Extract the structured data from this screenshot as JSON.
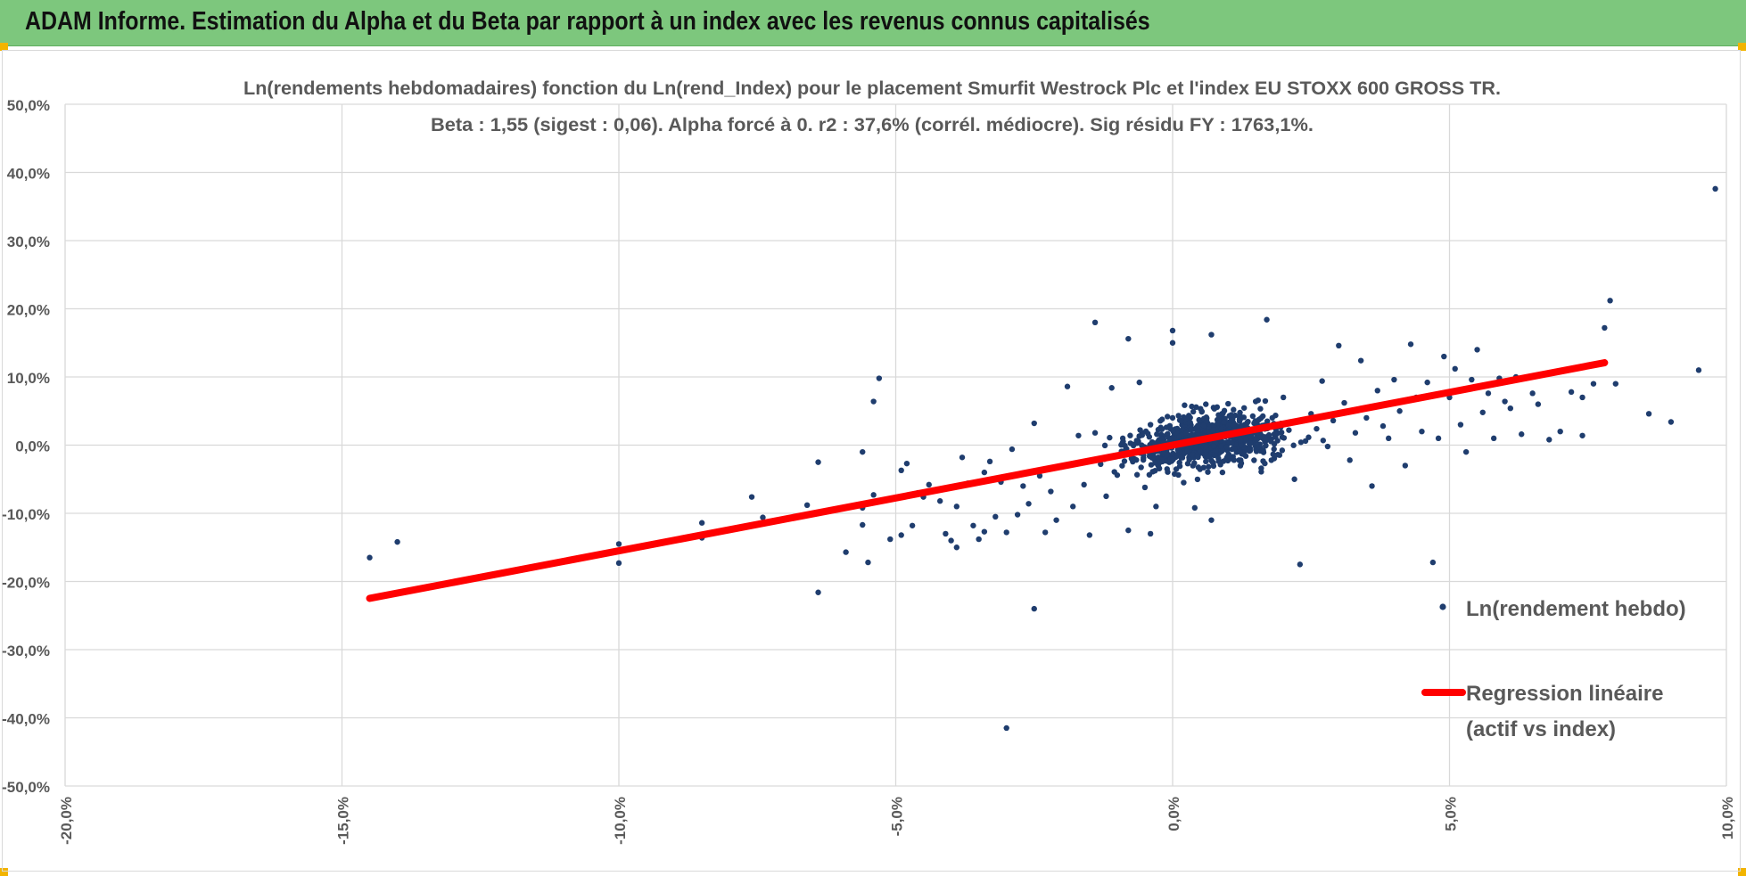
{
  "header": {
    "title": "ADAM Informe. Estimation du Alpha et du Beta par rapport à un index avec les revenus connus capitalisés"
  },
  "colors": {
    "banner": "#7dc77d",
    "points": "#1f3d6e",
    "regression": "#ff0000",
    "grid": "#d9d9d9",
    "corner_marks": "#f2b400"
  },
  "chart_data": {
    "type": "scatter",
    "title_line1": "Ln(rendements hebdomadaires) fonction du Ln(rend_Index) pour le placement Smurfit Westrock Plc et l'index EU STOXX 600 GROSS TR.",
    "title_line2": "Beta : 1,55 (sigest : 0,06). Alpha forcé à 0. r2 : 37,6% (corrél. médiocre). Sig résidu FY : 1763,1%.",
    "xlim": [
      -0.2,
      0.1
    ],
    "ylim": [
      -0.5,
      0.5
    ],
    "x_ticks": [
      -0.2,
      -0.15,
      -0.1,
      -0.05,
      0.0,
      0.05,
      0.1
    ],
    "x_tick_labels": [
      "-20,0%",
      "-15,0%",
      "-10,0%",
      "-5,0%",
      "0,0%",
      "5,0%",
      "10,0%"
    ],
    "y_ticks": [
      0.5,
      0.4,
      0.3,
      0.2,
      0.1,
      0.0,
      -0.1,
      -0.2,
      -0.3,
      -0.4,
      -0.5
    ],
    "y_tick_labels": [
      "50,0%",
      "40,0%",
      "30,0%",
      "20,0%",
      "10,0%",
      "0,0%",
      "-10,0%",
      "-20,0%",
      "-30,0%",
      "-40,0%",
      "-50,0%"
    ],
    "grid": true,
    "legend_position": "right",
    "series": [
      {
        "name": "Ln(rendement hebdo)",
        "kind": "scatter",
        "note": "cluster of roughly 900 weekly points concentrated between -2% and +3% on x; listed points are the visible outliers and representative cluster points",
        "points": [
          [
            -0.145,
            -0.165
          ],
          [
            -0.14,
            -0.142
          ],
          [
            -0.1,
            -0.145
          ],
          [
            -0.1,
            -0.173
          ],
          [
            -0.085,
            -0.114
          ],
          [
            -0.085,
            -0.136
          ],
          [
            -0.076,
            -0.076
          ],
          [
            -0.074,
            -0.106
          ],
          [
            -0.066,
            -0.088
          ],
          [
            -0.065,
            -0.1
          ],
          [
            -0.064,
            -0.025
          ],
          [
            -0.064,
            -0.216
          ],
          [
            -0.059,
            -0.157
          ],
          [
            -0.056,
            -0.01
          ],
          [
            -0.056,
            -0.092
          ],
          [
            -0.056,
            -0.117
          ],
          [
            -0.055,
            -0.172
          ],
          [
            -0.054,
            -0.073
          ],
          [
            -0.054,
            0.064
          ],
          [
            -0.053,
            0.098
          ],
          [
            -0.051,
            -0.138
          ],
          [
            -0.049,
            -0.132
          ],
          [
            -0.049,
            -0.037
          ],
          [
            -0.048,
            -0.027
          ],
          [
            -0.047,
            -0.118
          ],
          [
            -0.046,
            -0.07
          ],
          [
            -0.045,
            -0.076
          ],
          [
            -0.044,
            -0.058
          ],
          [
            -0.042,
            -0.082
          ],
          [
            -0.041,
            -0.13
          ],
          [
            -0.04,
            -0.14
          ],
          [
            -0.04,
            -0.062
          ],
          [
            -0.039,
            -0.09
          ],
          [
            -0.039,
            -0.15
          ],
          [
            -0.038,
            -0.018
          ],
          [
            -0.037,
            -0.056
          ],
          [
            -0.036,
            -0.118
          ],
          [
            -0.035,
            -0.138
          ],
          [
            -0.034,
            -0.04
          ],
          [
            -0.034,
            -0.127
          ],
          [
            -0.033,
            -0.024
          ],
          [
            -0.032,
            -0.105
          ],
          [
            -0.031,
            -0.054
          ],
          [
            -0.03,
            -0.128
          ],
          [
            -0.03,
            -0.415
          ],
          [
            -0.029,
            -0.006
          ],
          [
            -0.028,
            -0.102
          ],
          [
            -0.027,
            -0.06
          ],
          [
            -0.026,
            -0.086
          ],
          [
            -0.025,
            -0.24
          ],
          [
            -0.025,
            0.032
          ],
          [
            -0.024,
            -0.045
          ],
          [
            -0.023,
            -0.128
          ],
          [
            -0.022,
            -0.068
          ],
          [
            -0.021,
            -0.11
          ],
          [
            -0.02,
            -0.032
          ],
          [
            -0.019,
            0.086
          ],
          [
            -0.018,
            -0.09
          ],
          [
            -0.017,
            0.014
          ],
          [
            -0.016,
            -0.058
          ],
          [
            -0.015,
            -0.132
          ],
          [
            -0.014,
            0.018
          ],
          [
            -0.014,
            0.18
          ],
          [
            -0.013,
            -0.028
          ],
          [
            -0.012,
            -0.075
          ],
          [
            -0.011,
            0.084
          ],
          [
            -0.01,
            -0.044
          ],
          [
            -0.009,
            0.01
          ],
          [
            -0.008,
            -0.125
          ],
          [
            -0.008,
            0.156
          ],
          [
            -0.007,
            -0.02
          ],
          [
            -0.006,
            0.092
          ],
          [
            -0.005,
            -0.062
          ],
          [
            -0.004,
            0.03
          ],
          [
            -0.004,
            -0.13
          ],
          [
            -0.003,
            -0.09
          ],
          [
            -0.002,
            0.012
          ],
          [
            -0.001,
            -0.035
          ],
          [
            0.0,
            0.168
          ],
          [
            0.0,
            0.15
          ],
          [
            0.0,
            0.04
          ],
          [
            0.001,
            -0.012
          ],
          [
            0.002,
            -0.055
          ],
          [
            0.003,
            0.026
          ],
          [
            0.004,
            -0.092
          ],
          [
            0.005,
            0.008
          ],
          [
            0.006,
            0.06
          ],
          [
            0.006,
            -0.024
          ],
          [
            0.007,
            -0.11
          ],
          [
            0.007,
            0.162
          ],
          [
            0.008,
            0.018
          ],
          [
            0.009,
            -0.04
          ],
          [
            0.01,
            0.002
          ],
          [
            0.011,
            0.052
          ],
          [
            0.012,
            -0.022
          ],
          [
            0.013,
            0.03
          ],
          [
            0.014,
            -0.008
          ],
          [
            0.015,
            0.064
          ],
          [
            0.016,
            -0.034
          ],
          [
            0.017,
            0.184
          ],
          [
            0.017,
            0.012
          ],
          [
            0.018,
            0.04
          ],
          [
            0.019,
            -0.014
          ],
          [
            0.02,
            0.07
          ],
          [
            0.021,
            0.022
          ],
          [
            0.022,
            -0.05
          ],
          [
            0.023,
            -0.175
          ],
          [
            0.024,
            0.006
          ],
          [
            0.025,
            0.046
          ],
          [
            0.026,
            0.024
          ],
          [
            0.027,
            0.094
          ],
          [
            0.028,
            -0.002
          ],
          [
            0.029,
            0.036
          ],
          [
            0.03,
            0.146
          ],
          [
            0.031,
            0.062
          ],
          [
            0.032,
            -0.022
          ],
          [
            0.033,
            0.018
          ],
          [
            0.034,
            0.124
          ],
          [
            0.035,
            0.04
          ],
          [
            0.036,
            -0.06
          ],
          [
            0.037,
            0.08
          ],
          [
            0.038,
            0.028
          ],
          [
            0.039,
            0.01
          ],
          [
            0.04,
            0.096
          ],
          [
            0.041,
            0.05
          ],
          [
            0.042,
            -0.03
          ],
          [
            0.043,
            0.148
          ],
          [
            0.044,
            0.07
          ],
          [
            0.045,
            0.02
          ],
          [
            0.046,
            0.092
          ],
          [
            0.047,
            -0.172
          ],
          [
            0.048,
            0.01
          ],
          [
            0.049,
            0.13
          ],
          [
            0.05,
            0.07
          ],
          [
            0.051,
            0.112
          ],
          [
            0.052,
            0.03
          ],
          [
            0.053,
            -0.01
          ],
          [
            0.054,
            0.096
          ],
          [
            0.055,
            0.14
          ],
          [
            0.056,
            0.048
          ],
          [
            0.057,
            0.076
          ],
          [
            0.058,
            0.01
          ],
          [
            0.059,
            0.098
          ],
          [
            0.06,
            0.064
          ],
          [
            0.061,
            0.054
          ],
          [
            0.062,
            0.1
          ],
          [
            0.063,
            0.016
          ],
          [
            0.065,
            0.076
          ],
          [
            0.066,
            0.06
          ],
          [
            0.068,
            0.008
          ],
          [
            0.07,
            0.02
          ],
          [
            0.072,
            0.078
          ],
          [
            0.074,
            0.07
          ],
          [
            0.074,
            0.014
          ],
          [
            0.076,
            0.09
          ],
          [
            0.078,
            0.172
          ],
          [
            0.079,
            0.212
          ],
          [
            0.08,
            0.09
          ],
          [
            0.086,
            0.046
          ],
          [
            0.09,
            0.034
          ],
          [
            0.095,
            0.11
          ],
          [
            0.098,
            0.376
          ]
        ]
      },
      {
        "name": "Regression linéaire (actif vs index)",
        "name_line1": "Regression linéaire",
        "name_line2": "(actif vs index)",
        "kind": "line",
        "x": [
          -0.145,
          0.078
        ],
        "y": [
          -0.2248,
          0.1209
        ]
      }
    ]
  }
}
